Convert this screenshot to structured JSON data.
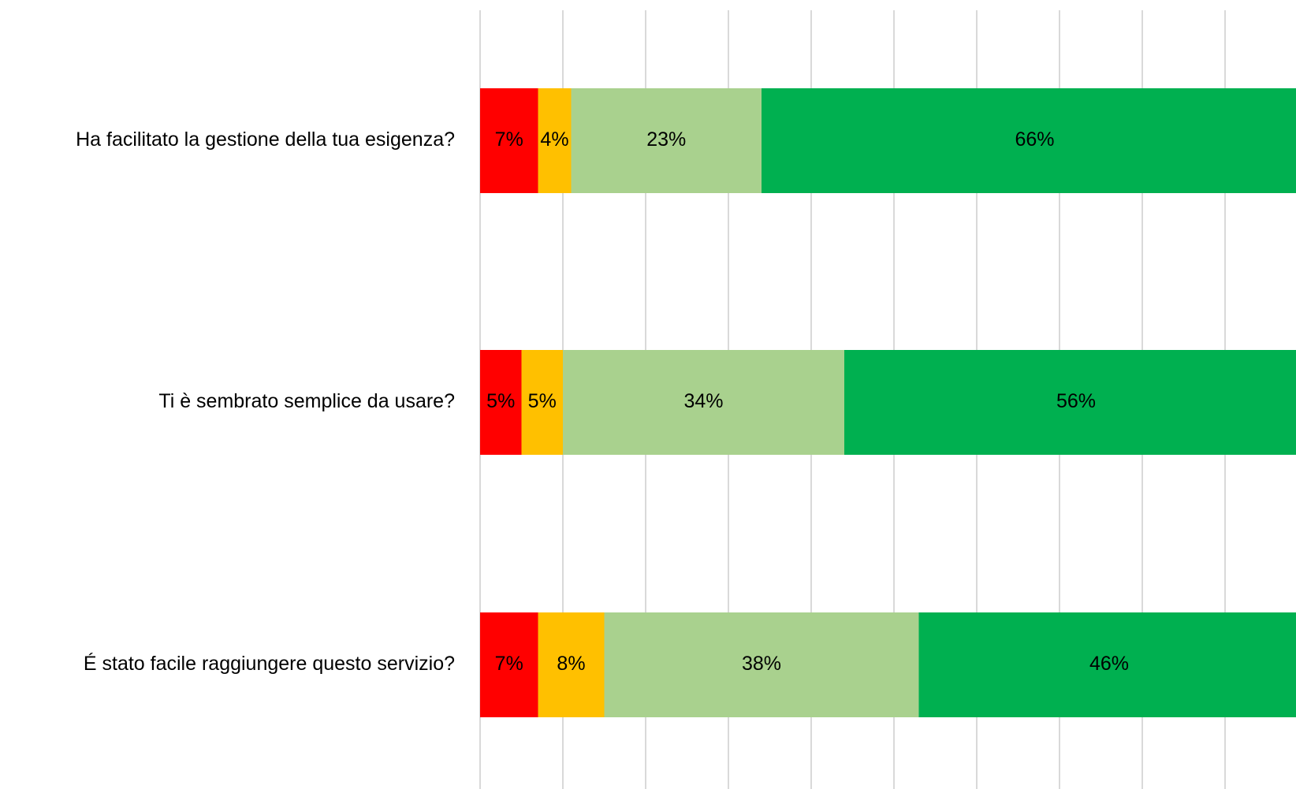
{
  "chart_data": {
    "type": "stacked-bar-horizontal",
    "categories": [
      "Ha facilitato la gestione della tua esigenza?",
      "Ti è sembrato semplice da usare?",
      "É stato facile raggiungere questo servizio?"
    ],
    "series": [
      {
        "color": "#ff0000",
        "values": [
          7,
          5,
          7
        ],
        "value_labels": [
          "7%",
          "5%",
          "7%"
        ]
      },
      {
        "color": "#ffc000",
        "values": [
          4,
          5,
          8
        ],
        "value_labels": [
          "4%",
          "5%",
          "8%"
        ]
      },
      {
        "color": "#a9d18e",
        "values": [
          23,
          34,
          38
        ],
        "value_labels": [
          "23%",
          "34%",
          "38%"
        ]
      },
      {
        "color": "#00b050",
        "values": [
          66,
          56,
          46
        ],
        "value_labels": [
          "66%",
          "56%",
          "46%"
        ]
      }
    ],
    "xlim": [
      0,
      100
    ],
    "xticks": [
      0,
      10,
      20,
      30,
      40,
      50,
      60,
      70,
      80,
      90,
      100
    ],
    "grid": true
  }
}
